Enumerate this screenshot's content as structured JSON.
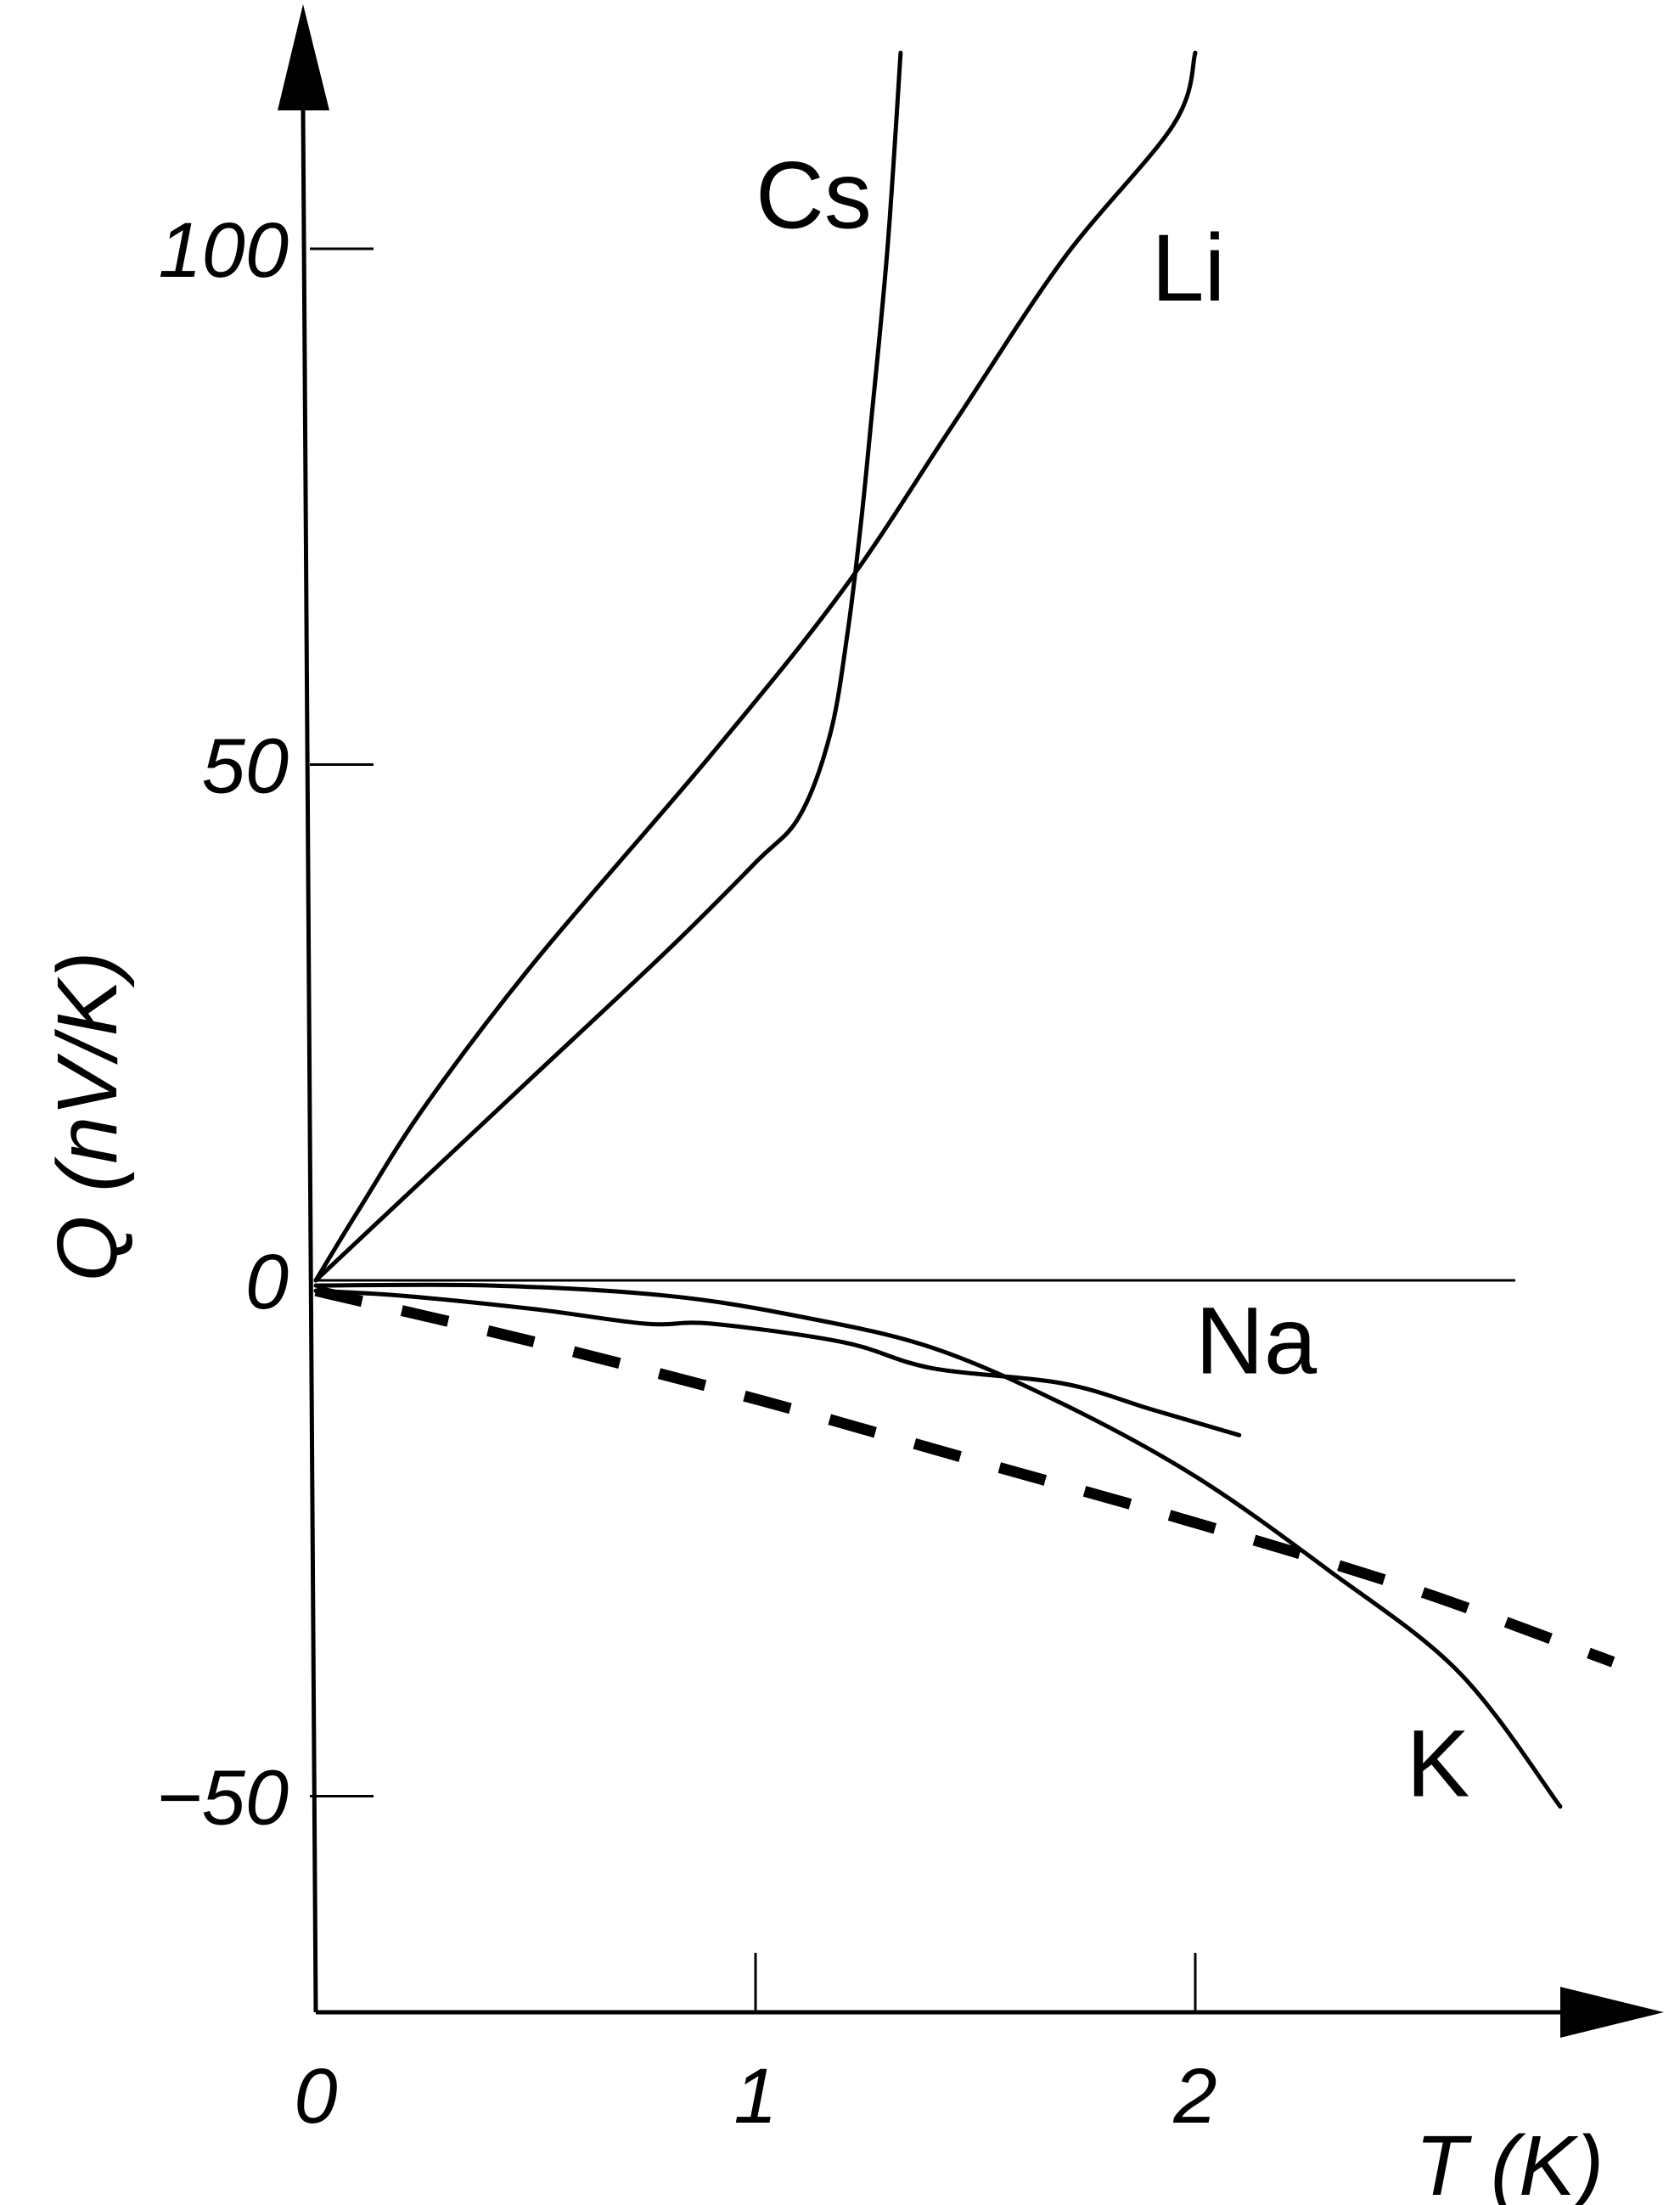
{
  "chart_data": {
    "type": "line",
    "xlabel": "T (K)",
    "ylabel": "Q (nV/K)",
    "xlim": [
      0,
      2.8
    ],
    "ylim": [
      -70,
      122
    ],
    "x_ticks": [
      {
        "value": 0,
        "label": "0"
      },
      {
        "value": 1,
        "label": "1"
      },
      {
        "value": 2,
        "label": "2"
      }
    ],
    "y_ticks": [
      {
        "value": 100,
        "label": "100"
      },
      {
        "value": 50,
        "label": "50"
      },
      {
        "value": 0,
        "label": "0"
      },
      {
        "value": -50,
        "label": "−50"
      }
    ],
    "grid": false,
    "zero_line": true,
    "series": [
      {
        "name": "Cs",
        "style": "solid",
        "points": [
          [
            0,
            0
          ],
          [
            0.25,
            10
          ],
          [
            0.5,
            20
          ],
          [
            0.8,
            32
          ],
          [
            1.0,
            40.5
          ],
          [
            1.1,
            45
          ],
          [
            1.17,
            53
          ],
          [
            1.21,
            63
          ],
          [
            1.24,
            73.5
          ],
          [
            1.26,
            82
          ],
          [
            1.3,
            100
          ],
          [
            1.33,
            119
          ]
        ]
      },
      {
        "name": "Li",
        "style": "solid",
        "points": [
          [
            0,
            0
          ],
          [
            0.1,
            7
          ],
          [
            0.25,
            17
          ],
          [
            0.5,
            31
          ],
          [
            0.9,
            51
          ],
          [
            1.2,
            67
          ],
          [
            1.45,
            83
          ],
          [
            1.7,
            99
          ],
          [
            1.95,
            112
          ],
          [
            2.0,
            119
          ]
        ]
      },
      {
        "name": "Na",
        "style": "solid",
        "points": [
          [
            0,
            -1
          ],
          [
            0.2,
            -1.5
          ],
          [
            0.5,
            -2.8
          ],
          [
            0.75,
            -4.2
          ],
          [
            0.9,
            -4.2
          ],
          [
            1.2,
            -6
          ],
          [
            1.4,
            -8.5
          ],
          [
            1.7,
            -10
          ],
          [
            1.9,
            -12.5
          ],
          [
            2.1,
            -15
          ]
        ]
      },
      {
        "name": "K",
        "style": "solid",
        "points": [
          [
            0,
            -0.5
          ],
          [
            0.4,
            -0.5
          ],
          [
            0.8,
            -1.5
          ],
          [
            1.1,
            -3.5
          ],
          [
            1.4,
            -6.5
          ],
          [
            1.7,
            -12
          ],
          [
            2.0,
            -19
          ],
          [
            2.3,
            -28
          ],
          [
            2.6,
            -38
          ],
          [
            2.83,
            -51
          ]
        ]
      },
      {
        "name": "",
        "style": "dashed",
        "points": [
          [
            0,
            -1
          ],
          [
            0.5,
            -6
          ],
          [
            1.0,
            -11.5
          ],
          [
            1.5,
            -17.5
          ],
          [
            2.0,
            -23.5
          ],
          [
            2.5,
            -30
          ],
          [
            2.95,
            -37
          ]
        ]
      }
    ],
    "annotations": [
      {
        "text": "Cs",
        "x": 1.0,
        "y": 102
      },
      {
        "text": "Li",
        "x": 1.9,
        "y": 95
      },
      {
        "text": "Na",
        "x": 2.0,
        "y": -9
      },
      {
        "text": "K",
        "x": 2.48,
        "y": -50
      }
    ]
  }
}
